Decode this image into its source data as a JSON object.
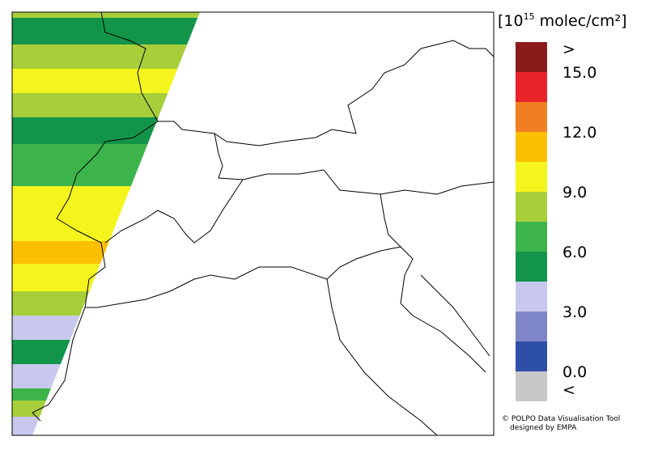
{
  "legend": {
    "title": {
      "base": "[10",
      "exponent": "15",
      "unit": "molec/cm²]"
    },
    "labels": [
      ">",
      "15.0",
      "12.0",
      "9.0",
      "6.0",
      "3.0",
      "0.0",
      "<"
    ],
    "colors": [
      "#8b1a1a",
      "#e8232a",
      "#f07f22",
      "#fcc000",
      "#f5f51e",
      "#a8cf3a",
      "#3cb44a",
      "#12954a",
      "#c8c8ee",
      "#7f86c8",
      "#2e4fa8",
      "#c8c8c8"
    ]
  },
  "credit": [
    "© POLPO Data Visualisation Tool",
    "designed by EMPA"
  ]
}
